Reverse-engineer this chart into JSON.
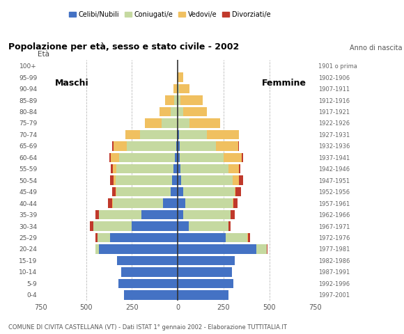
{
  "age_groups": [
    "0-4",
    "5-9",
    "10-14",
    "15-19",
    "20-24",
    "25-29",
    "30-34",
    "35-39",
    "40-44",
    "45-49",
    "50-54",
    "55-59",
    "60-64",
    "65-69",
    "70-74",
    "75-79",
    "80-84",
    "85-89",
    "90-94",
    "95-99",
    "100+"
  ],
  "birth_years": [
    "1997-2001",
    "1992-1996",
    "1987-1991",
    "1982-1986",
    "1977-1981",
    "1972-1976",
    "1967-1971",
    "1962-1966",
    "1957-1961",
    "1952-1956",
    "1947-1951",
    "1942-1946",
    "1937-1941",
    "1932-1936",
    "1927-1931",
    "1922-1926",
    "1917-1921",
    "1912-1916",
    "1907-1911",
    "1902-1906",
    "1901 o prima"
  ],
  "colors": {
    "celibe": "#4472c4",
    "coniugato": "#c5d9a0",
    "vedovo": "#f0c060",
    "divorziato": "#c0392b"
  },
  "males": {
    "celibe": [
      295,
      325,
      310,
      330,
      430,
      370,
      250,
      200,
      80,
      40,
      30,
      25,
      15,
      10,
      5,
      0,
      0,
      0,
      0,
      0,
      0
    ],
    "coniugato": [
      0,
      0,
      0,
      0,
      20,
      70,
      210,
      230,
      275,
      295,
      310,
      310,
      305,
      270,
      200,
      90,
      40,
      20,
      5,
      0,
      0
    ],
    "vedovo": [
      0,
      0,
      0,
      0,
      0,
      0,
      0,
      0,
      5,
      5,
      10,
      20,
      45,
      70,
      80,
      90,
      60,
      50,
      20,
      5,
      0
    ],
    "divorziato": [
      0,
      0,
      0,
      0,
      0,
      10,
      20,
      20,
      20,
      20,
      20,
      10,
      10,
      10,
      0,
      0,
      0,
      0,
      0,
      0,
      0
    ]
  },
  "females": {
    "nubile": [
      275,
      305,
      295,
      310,
      430,
      260,
      60,
      30,
      40,
      30,
      20,
      15,
      10,
      10,
      5,
      0,
      0,
      0,
      0,
      0,
      0
    ],
    "coniugata": [
      0,
      0,
      0,
      0,
      55,
      120,
      215,
      260,
      260,
      280,
      280,
      260,
      240,
      200,
      155,
      65,
      30,
      15,
      5,
      0,
      0
    ],
    "vedova": [
      0,
      0,
      0,
      0,
      0,
      5,
      0,
      0,
      5,
      5,
      35,
      60,
      100,
      120,
      175,
      165,
      130,
      120,
      60,
      30,
      0
    ],
    "divorziata": [
      0,
      0,
      0,
      0,
      5,
      10,
      15,
      20,
      20,
      30,
      20,
      5,
      5,
      5,
      0,
      0,
      0,
      0,
      0,
      0,
      0
    ]
  },
  "title": "Popolazione per età, sesso e stato civile - 2002",
  "subtitle": "COMUNE DI CIVITA CASTELLANA (VT) - Dati ISTAT 1° gennaio 2002 - Elaborazione TUTTITALIA.IT",
  "xlabel_left": "Maschi",
  "xlabel_right": "Femmine",
  "ylabel": "Età",
  "ylabel_right": "Anno di nascita",
  "xlim": 750,
  "legend_labels": [
    "Celibi/Nubili",
    "Coniugati/e",
    "Vedovi/e",
    "Divorziati/e"
  ]
}
